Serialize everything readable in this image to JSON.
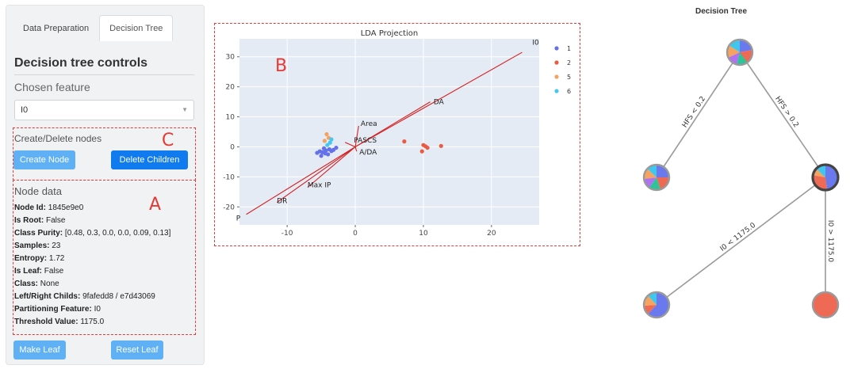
{
  "tabs": [
    "Data Preparation",
    "Decision Tree"
  ],
  "controls_title": "Decision tree controls",
  "chosen_feature": {
    "label": "Chosen feature",
    "value": "I0"
  },
  "region_letters": {
    "a": "A",
    "b": "B",
    "c": "C"
  },
  "create_delete": {
    "title": "Create/Delete nodes",
    "create_label": "Create Node",
    "delete_label": "Delete Children"
  },
  "node_data": {
    "title": "Node data",
    "fields": [
      {
        "key": "Node Id:",
        "value": "1845e9e0"
      },
      {
        "key": "Is Root:",
        "value": "False"
      },
      {
        "key": "Class Purity:",
        "value": "[0.48, 0.3, 0.0, 0.0, 0.09, 0.13]"
      },
      {
        "key": "Samples:",
        "value": "23"
      },
      {
        "key": "Entropy:",
        "value": "1.72"
      },
      {
        "key": "Is Leaf:",
        "value": "False"
      },
      {
        "key": "Class:",
        "value": "None"
      },
      {
        "key": "Left/Right Childs:",
        "value": "9fafedd8 / e7d43069"
      },
      {
        "key": "Partitioning Feature:",
        "value": "I0"
      },
      {
        "key": "Threshold Value:",
        "value": "1175.0"
      }
    ]
  },
  "bottom_buttons": {
    "make_leaf": "Make Leaf",
    "reset_leaf": "Reset Leaf"
  },
  "chart_data": {
    "type": "scatter",
    "title": "LDA Projection",
    "xlabel": "",
    "ylabel": "",
    "xlim": [
      -17,
      27
    ],
    "ylim": [
      -26,
      36
    ],
    "x_ticks": [
      -10,
      0,
      10,
      20
    ],
    "y_ticks": [
      -20,
      -10,
      0,
      10,
      20,
      30
    ],
    "grid": true,
    "legend_position": "right",
    "series": [
      {
        "name": "1",
        "color": "#6471e8",
        "points": [
          [
            -5.2,
            -1.5
          ],
          [
            -4.8,
            -1.8
          ],
          [
            -4.3,
            -1.2
          ],
          [
            -5.6,
            -2.0
          ],
          [
            -3.8,
            -0.8
          ],
          [
            -4.0,
            -2.5
          ],
          [
            -4.6,
            -0.5
          ],
          [
            -3.5,
            -1.4
          ],
          [
            -5.0,
            -3.0
          ],
          [
            -2.8,
            -0.3
          ],
          [
            -4.4,
            -2.2
          ],
          [
            -3.2,
            -1.0
          ]
        ]
      },
      {
        "name": "2",
        "color": "#ea5a43",
        "points": [
          [
            7.2,
            1.8
          ],
          [
            9.8,
            -1.5
          ],
          [
            10.3,
            0.2
          ],
          [
            10.6,
            -0.3
          ],
          [
            12.6,
            0.3
          ],
          [
            10.0,
            0.6
          ]
        ]
      },
      {
        "name": "5",
        "color": "#f4a262",
        "points": [
          [
            -4.2,
            4.2
          ],
          [
            -3.9,
            3.0
          ],
          [
            -4.5,
            2.0
          ]
        ]
      },
      {
        "name": "6",
        "color": "#45c8ef",
        "points": [
          [
            -3.5,
            2.5
          ],
          [
            -4.1,
            0.6
          ],
          [
            -3.7,
            1.4
          ]
        ]
      }
    ],
    "vectors": [
      {
        "label": "I0",
        "end": [
          24.5,
          31.5
        ],
        "label_at": [
          26.0,
          34.0
        ]
      },
      {
        "label": "DA",
        "end": [
          11.0,
          15.0
        ],
        "label_at": [
          11.5,
          14.2
        ]
      },
      {
        "label": "Area",
        "end": [
          0.5,
          7.0
        ],
        "label_at": [
          0.8,
          7.0
        ]
      },
      {
        "label": "PASCS",
        "end": [
          -1.5,
          1.5
        ],
        "label_at": [
          -0.2,
          1.5
        ]
      },
      {
        "label": "A/DA",
        "end": [
          0.2,
          -1.5
        ],
        "label_at": [
          0.6,
          -2.5
        ]
      },
      {
        "label": "Max IP",
        "end": [
          -7.0,
          -13.5
        ],
        "label_at": [
          -7.0,
          -13.5
        ]
      },
      {
        "label": "DR",
        "end": [
          -11.5,
          -18.5
        ],
        "label_at": [
          -11.5,
          -18.8
        ]
      },
      {
        "label": "P",
        "end": [
          -16.0,
          -22.5
        ],
        "label_at": [
          -17.5,
          -24.5
        ]
      }
    ]
  },
  "tree": {
    "title": "Decision Tree",
    "palette": [
      "#6b79ee",
      "#ef6a54",
      "#2fc39a",
      "#b072f0",
      "#f5a35e",
      "#3fc7ee"
    ],
    "nodes": [
      {
        "id": "root",
        "name": "tree-root-node",
        "selected": false,
        "purity": [
          0.22,
          0.18,
          0.14,
          0.14,
          0.16,
          0.16
        ]
      },
      {
        "id": "left",
        "name": "tree-left-node",
        "selected": false,
        "purity": [
          0.25,
          0.2,
          0.15,
          0.13,
          0.14,
          0.13
        ]
      },
      {
        "id": "right",
        "name": "tree-right-node-selected",
        "selected": true,
        "purity": [
          0.48,
          0.3,
          0.0,
          0.0,
          0.09,
          0.13
        ]
      },
      {
        "id": "rl",
        "name": "tree-right-left-node",
        "selected": false,
        "purity": [
          0.62,
          0.12,
          0.0,
          0.0,
          0.14,
          0.12
        ]
      },
      {
        "id": "rr",
        "name": "tree-right-right-node",
        "selected": false,
        "purity": [
          0.0,
          1.0,
          0.0,
          0.0,
          0.0,
          0.0
        ]
      }
    ],
    "edges": [
      {
        "from": "root",
        "to": "left",
        "label": "HFS < 0.2"
      },
      {
        "from": "root",
        "to": "right",
        "label": "HFS > 0.2"
      },
      {
        "from": "right",
        "to": "rl",
        "label": "I0 < 1175.0"
      },
      {
        "from": "right",
        "to": "rr",
        "label": "I0 > 1175.0"
      }
    ]
  }
}
